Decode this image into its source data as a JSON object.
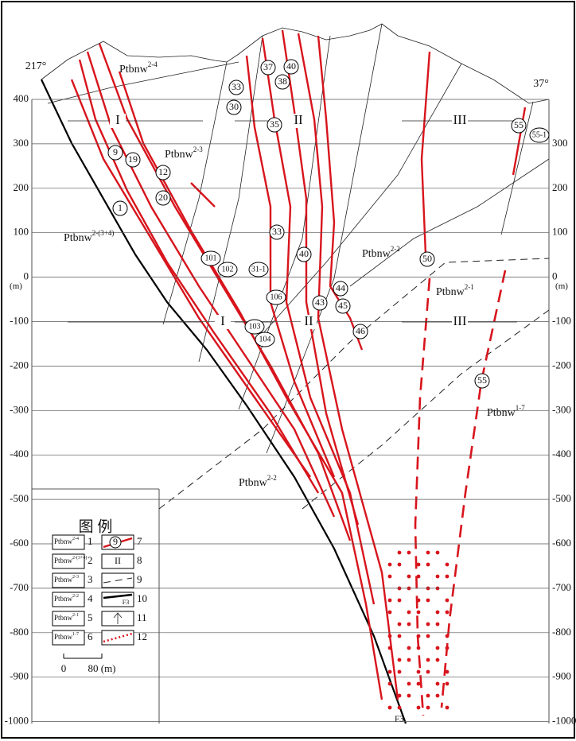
{
  "azimuth_left": "217°",
  "azimuth_right": "37°",
  "unit": "(m)",
  "elevations_left": [
    400,
    300,
    200,
    100,
    0,
    -100,
    -200,
    -300,
    -400,
    -500,
    -600,
    -700,
    -800,
    -900,
    -1000
  ],
  "elevations_right": [
    300,
    200,
    100,
    0,
    -100,
    -200,
    -300,
    -400,
    -500,
    -600,
    -700,
    -800,
    -900,
    -1000
  ],
  "zones": [
    "I",
    "II",
    "III",
    "I",
    "II",
    "III"
  ],
  "formations": [
    {
      "base": "Ptbnw",
      "sup": "2-4"
    },
    {
      "base": "Ptbnw",
      "sup": "2-3"
    },
    {
      "base": "Ptbnw",
      "sup": "2-(3+4)"
    },
    {
      "base": "Ptbnw",
      "sup": "2-2"
    },
    {
      "base": "Ptbnw",
      "sup": "2-1"
    },
    {
      "base": "Ptbnw",
      "sup": "1-7"
    },
    {
      "base": "Ptbnw",
      "sup": "2-2"
    }
  ],
  "veins": [
    "9",
    "19",
    "12",
    "20",
    "1",
    "33",
    "30",
    "37",
    "40",
    "38",
    "35",
    "33",
    "40",
    "101",
    "102",
    "31-1",
    "106",
    "103",
    "104",
    "44",
    "43",
    "45",
    "46",
    "50",
    "55",
    "55-1",
    "55"
  ],
  "fault": "F3",
  "legend": {
    "title": "图 例",
    "formations": [
      {
        "base": "Ptbnw",
        "sup": "2-4",
        "num": "1"
      },
      {
        "base": "Ptbnw",
        "sup": "2-(3+4)",
        "num": "2"
      },
      {
        "base": "Ptbnw",
        "sup": "2-3",
        "num": "3"
      },
      {
        "base": "Ptbnw",
        "sup": "2-2",
        "num": "4"
      },
      {
        "base": "Ptbnw",
        "sup": "2-1",
        "num": "5"
      },
      {
        "base": "Ptbnw",
        "sup": "1-7",
        "num": "6"
      }
    ],
    "symbols": [
      {
        "label": "9",
        "num": "7"
      },
      {
        "label": "II",
        "num": "8"
      },
      {
        "label": "",
        "num": "9"
      },
      {
        "label": "F3",
        "num": "10"
      },
      {
        "label": "",
        "num": "11"
      },
      {
        "label": "",
        "num": "12"
      }
    ],
    "scale_start": "0",
    "scale_end": "80 (m)"
  }
}
